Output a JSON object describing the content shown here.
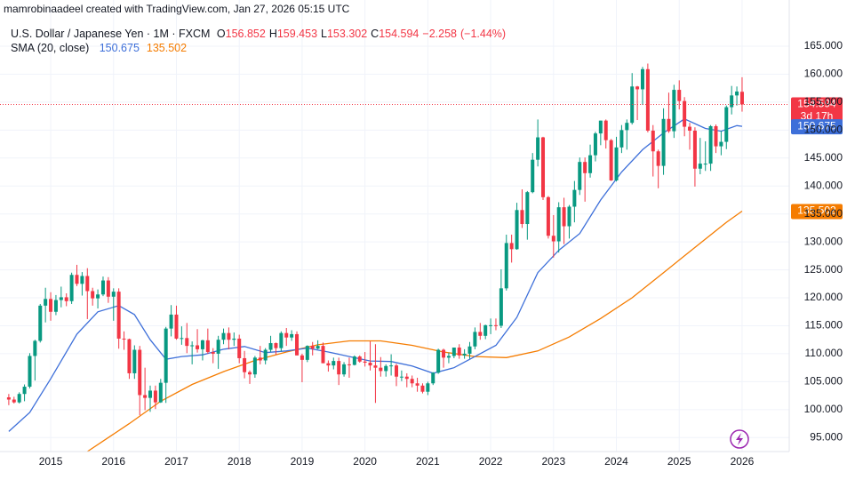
{
  "credit": "mamrobinaadeel created with TradingView.com, Jan 27, 2026 05:15 UTC",
  "chart_data": {
    "type": "candlestick",
    "title": "U.S. Dollar / Japanese Yen · 1M · FXCM",
    "ohlc_keys": [
      "O",
      "H",
      "L",
      "C"
    ],
    "change": {
      "value": -2.258,
      "label": "−2.258"
    },
    "change_pct": {
      "value": -1.44,
      "label": "(−1.44%)"
    },
    "countdown": "3d 17h",
    "up_color": "#089981",
    "down_color": "#f23645",
    "indicator_label": "SMA (20, close)",
    "x": [
      "2014-05",
      "2014-06",
      "2014-07",
      "2014-08",
      "2014-09",
      "2014-10",
      "2014-11",
      "2014-12",
      "2015-01",
      "2015-02",
      "2015-03",
      "2015-04",
      "2015-05",
      "2015-06",
      "2015-07",
      "2015-08",
      "2015-09",
      "2015-10",
      "2015-11",
      "2015-12",
      "2016-01",
      "2016-02",
      "2016-03",
      "2016-04",
      "2016-05",
      "2016-06",
      "2016-07",
      "2016-08",
      "2016-09",
      "2016-10",
      "2016-11",
      "2016-12",
      "2017-01",
      "2017-02",
      "2017-03",
      "2017-04",
      "2017-05",
      "2017-06",
      "2017-07",
      "2017-08",
      "2017-09",
      "2017-10",
      "2017-11",
      "2017-12",
      "2018-01",
      "2018-02",
      "2018-03",
      "2018-04",
      "2018-05",
      "2018-06",
      "2018-07",
      "2018-08",
      "2018-09",
      "2018-10",
      "2018-11",
      "2018-12",
      "2019-01",
      "2019-02",
      "2019-03",
      "2019-04",
      "2019-05",
      "2019-06",
      "2019-07",
      "2019-08",
      "2019-09",
      "2019-10",
      "2019-11",
      "2019-12",
      "2020-01",
      "2020-02",
      "2020-03",
      "2020-04",
      "2020-05",
      "2020-06",
      "2020-07",
      "2020-08",
      "2020-09",
      "2020-10",
      "2020-11",
      "2020-12",
      "2021-01",
      "2021-02",
      "2021-03",
      "2021-04",
      "2021-05",
      "2021-06",
      "2021-07",
      "2021-08",
      "2021-09",
      "2021-10",
      "2021-11",
      "2021-12",
      "2022-01",
      "2022-02",
      "2022-03",
      "2022-04",
      "2022-05",
      "2022-06",
      "2022-07",
      "2022-08",
      "2022-09",
      "2022-10",
      "2022-11",
      "2022-12",
      "2023-01",
      "2023-02",
      "2023-03",
      "2023-04",
      "2023-05",
      "2023-06",
      "2023-07",
      "2023-08",
      "2023-09",
      "2023-10",
      "2023-11",
      "2023-12",
      "2024-01",
      "2024-02",
      "2024-03",
      "2024-04",
      "2024-05",
      "2024-06",
      "2024-07",
      "2024-08",
      "2024-09",
      "2024-10",
      "2024-11",
      "2024-12",
      "2025-01",
      "2025-02",
      "2025-03",
      "2025-04",
      "2025-05",
      "2025-06",
      "2025-07",
      "2025-08",
      "2025-09",
      "2025-10",
      "2025-11",
      "2025-12",
      "2026-01"
    ],
    "candles": [
      [
        102.2,
        102.8,
        100.8,
        101.8
      ],
      [
        101.8,
        102.3,
        101.1,
        101.3
      ],
      [
        101.3,
        103.1,
        101.1,
        102.8
      ],
      [
        102.8,
        104.5,
        101.5,
        104.1
      ],
      [
        104.1,
        110.1,
        103.8,
        109.6
      ],
      [
        109.6,
        112.5,
        105.2,
        112.3
      ],
      [
        112.3,
        118.9,
        112.0,
        118.6
      ],
      [
        118.6,
        121.8,
        115.6,
        119.8
      ],
      [
        119.8,
        121.0,
        115.9,
        117.5
      ],
      [
        117.5,
        120.5,
        116.9,
        119.6
      ],
      [
        119.6,
        122.0,
        118.3,
        120.1
      ],
      [
        120.1,
        120.8,
        118.5,
        119.4
      ],
      [
        119.4,
        124.5,
        118.9,
        124.1
      ],
      [
        124.1,
        125.9,
        122.1,
        122.5
      ],
      [
        122.5,
        124.6,
        120.4,
        123.9
      ],
      [
        123.9,
        125.3,
        116.2,
        121.2
      ],
      [
        121.2,
        121.8,
        118.6,
        119.9
      ],
      [
        119.9,
        121.5,
        118.1,
        120.6
      ],
      [
        120.6,
        123.8,
        120.3,
        123.1
      ],
      [
        123.1,
        123.7,
        119.1,
        120.2
      ],
      [
        120.2,
        121.7,
        115.9,
        121.1
      ],
      [
        121.1,
        121.7,
        110.9,
        112.7
      ],
      [
        112.7,
        114.0,
        110.7,
        112.6
      ],
      [
        112.6,
        112.7,
        105.5,
        106.5
      ],
      [
        106.5,
        111.5,
        105.5,
        110.7
      ],
      [
        110.7,
        111.4,
        99.0,
        102.6
      ],
      [
        102.6,
        107.5,
        99.9,
        102.1
      ],
      [
        102.1,
        104.3,
        99.6,
        103.4
      ],
      [
        103.4,
        104.3,
        100.1,
        101.3
      ],
      [
        101.3,
        105.5,
        101.2,
        104.8
      ],
      [
        104.8,
        114.8,
        101.2,
        114.5
      ],
      [
        114.5,
        118.7,
        113.1,
        117.0
      ],
      [
        117.0,
        118.6,
        112.5,
        112.7
      ],
      [
        112.7,
        114.9,
        111.6,
        112.8
      ],
      [
        112.8,
        115.5,
        110.1,
        111.4
      ],
      [
        111.4,
        112.2,
        108.1,
        111.5
      ],
      [
        111.5,
        114.4,
        110.2,
        110.8
      ],
      [
        110.8,
        112.5,
        108.8,
        112.4
      ],
      [
        112.4,
        114.5,
        110.0,
        110.3
      ],
      [
        110.3,
        111.0,
        108.3,
        110.0
      ],
      [
        110.0,
        113.2,
        107.3,
        112.5
      ],
      [
        112.5,
        114.5,
        111.7,
        113.7
      ],
      [
        113.7,
        114.7,
        110.8,
        112.5
      ],
      [
        112.5,
        113.8,
        111.4,
        112.7
      ],
      [
        112.7,
        113.4,
        108.3,
        109.2
      ],
      [
        109.2,
        110.5,
        105.6,
        106.7
      ],
      [
        106.7,
        107.0,
        104.6,
        106.3
      ],
      [
        106.3,
        109.6,
        105.7,
        109.3
      ],
      [
        109.3,
        111.4,
        108.1,
        108.8
      ],
      [
        108.8,
        111.0,
        108.1,
        110.7
      ],
      [
        110.7,
        113.2,
        110.3,
        111.9
      ],
      [
        111.9,
        112.0,
        109.8,
        111.0
      ],
      [
        111.0,
        114.0,
        110.4,
        113.7
      ],
      [
        113.7,
        114.6,
        111.4,
        112.9
      ],
      [
        112.9,
        114.2,
        112.3,
        113.5
      ],
      [
        113.5,
        114.0,
        109.7,
        109.7
      ],
      [
        109.7,
        110.0,
        104.9,
        108.9
      ],
      [
        108.9,
        111.5,
        108.5,
        111.4
      ],
      [
        111.4,
        112.1,
        109.7,
        110.9
      ],
      [
        110.9,
        112.4,
        110.8,
        111.4
      ],
      [
        111.4,
        112.0,
        108.3,
        108.3
      ],
      [
        108.3,
        108.8,
        106.8,
        107.9
      ],
      [
        107.9,
        109.3,
        107.2,
        108.7
      ],
      [
        108.7,
        109.3,
        104.4,
        106.3
      ],
      [
        106.3,
        108.5,
        105.9,
        108.1
      ],
      [
        108.1,
        109.3,
        105.7,
        108.0
      ],
      [
        108.0,
        109.7,
        107.9,
        109.5
      ],
      [
        109.5,
        109.7,
        108.4,
        108.6
      ],
      [
        108.6,
        110.3,
        107.7,
        108.4
      ],
      [
        108.4,
        112.2,
        107.0,
        107.9
      ],
      [
        107.9,
        111.7,
        101.2,
        107.5
      ],
      [
        107.5,
        109.4,
        105.9,
        106.9
      ],
      [
        106.9,
        108.1,
        105.9,
        107.8
      ],
      [
        107.8,
        109.9,
        106.1,
        107.9
      ],
      [
        107.9,
        108.2,
        104.2,
        105.9
      ],
      [
        105.9,
        107.0,
        105.1,
        105.9
      ],
      [
        105.9,
        106.5,
        104.0,
        105.5
      ],
      [
        105.5,
        106.1,
        104.0,
        104.7
      ],
      [
        104.7,
        105.7,
        103.2,
        104.3
      ],
      [
        104.3,
        104.7,
        102.9,
        103.2
      ],
      [
        103.2,
        105.0,
        102.6,
        104.7
      ],
      [
        104.7,
        106.7,
        104.4,
        106.6
      ],
      [
        106.6,
        110.9,
        106.4,
        110.7
      ],
      [
        110.7,
        110.9,
        107.5,
        109.3
      ],
      [
        109.3,
        110.2,
        108.3,
        109.6
      ],
      [
        109.6,
        111.1,
        109.2,
        111.1
      ],
      [
        111.1,
        111.7,
        109.1,
        109.7
      ],
      [
        109.7,
        110.8,
        109.1,
        110.0
      ],
      [
        110.0,
        112.1,
        109.1,
        111.3
      ],
      [
        111.3,
        114.7,
        110.8,
        113.9
      ],
      [
        113.9,
        115.5,
        112.5,
        113.2
      ],
      [
        113.2,
        115.2,
        112.6,
        115.1
      ],
      [
        115.1,
        116.3,
        113.5,
        115.1
      ],
      [
        115.1,
        116.3,
        114.2,
        115.0
      ],
      [
        115.0,
        125.1,
        114.6,
        121.7
      ],
      [
        121.7,
        131.3,
        121.3,
        129.8
      ],
      [
        129.8,
        131.3,
        126.3,
        128.7
      ],
      [
        128.7,
        137.0,
        128.6,
        135.7
      ],
      [
        135.7,
        139.4,
        132.5,
        133.2
      ],
      [
        133.2,
        139.1,
        130.4,
        138.9
      ],
      [
        138.9,
        145.9,
        138.7,
        144.7
      ],
      [
        144.7,
        151.9,
        143.5,
        148.7
      ],
      [
        148.7,
        148.8,
        137.5,
        138.0
      ],
      [
        138.0,
        138.2,
        130.6,
        131.1
      ],
      [
        131.1,
        134.8,
        127.2,
        130.1
      ],
      [
        130.1,
        137.1,
        128.1,
        136.2
      ],
      [
        136.2,
        137.9,
        129.6,
        132.8
      ],
      [
        132.8,
        136.6,
        130.6,
        136.3
      ],
      [
        136.3,
        140.9,
        133.5,
        139.3
      ],
      [
        139.3,
        145.1,
        138.4,
        144.3
      ],
      [
        144.3,
        145.1,
        137.2,
        142.3
      ],
      [
        142.3,
        147.4,
        141.5,
        145.5
      ],
      [
        145.5,
        149.7,
        144.4,
        149.4
      ],
      [
        149.4,
        151.7,
        147.3,
        151.7
      ],
      [
        151.7,
        151.9,
        146.7,
        148.2
      ],
      [
        148.2,
        148.4,
        140.9,
        141.0
      ],
      [
        141.0,
        148.8,
        140.8,
        146.9
      ],
      [
        146.9,
        150.9,
        145.9,
        150.0
      ],
      [
        150.0,
        151.9,
        146.5,
        151.3
      ],
      [
        151.3,
        160.2,
        151.0,
        157.8
      ],
      [
        157.8,
        157.9,
        151.8,
        157.3
      ],
      [
        157.3,
        161.3,
        154.5,
        160.9
      ],
      [
        160.9,
        161.9,
        149.6,
        149.9
      ],
      [
        149.9,
        150.9,
        141.7,
        146.2
      ],
      [
        146.2,
        146.5,
        139.6,
        143.6
      ],
      [
        143.6,
        153.9,
        142.0,
        152.0
      ],
      [
        152.0,
        156.7,
        149.5,
        149.8
      ],
      [
        149.8,
        158.1,
        148.6,
        157.2
      ],
      [
        157.2,
        158.9,
        153.7,
        155.2
      ],
      [
        155.2,
        155.9,
        148.9,
        150.6
      ],
      [
        150.6,
        151.3,
        146.5,
        149.9
      ],
      [
        149.9,
        150.5,
        139.9,
        143.1
      ],
      [
        143.1,
        148.6,
        142.1,
        144.0
      ],
      [
        144.0,
        148.0,
        142.7,
        144.0
      ],
      [
        144.0,
        150.9,
        142.7,
        150.7
      ],
      [
        150.7,
        151.0,
        145.9,
        147.1
      ],
      [
        147.1,
        149.9,
        145.5,
        147.9
      ],
      [
        147.9,
        154.4,
        146.6,
        154.1
      ],
      [
        154.1,
        157.9,
        152.8,
        156.2
      ],
      [
        156.2,
        157.8,
        154.4,
        156.9
      ],
      [
        156.852,
        159.453,
        153.302,
        154.594
      ]
    ],
    "lines": [
      {
        "color": "#3d6fd9",
        "x": [
          "2014-05",
          "2014-09",
          "2015-01",
          "2015-06",
          "2015-10",
          "2016-02",
          "2016-05",
          "2016-08",
          "2016-11",
          "2017-02",
          "2017-06",
          "2017-10",
          "2018-02",
          "2018-06",
          "2018-10",
          "2019-02",
          "2019-06",
          "2019-10",
          "2020-02",
          "2020-06",
          "2020-10",
          "2021-02",
          "2021-06",
          "2021-10",
          "2022-02",
          "2022-06",
          "2022-10",
          "2023-02",
          "2023-06",
          "2023-10",
          "2024-02",
          "2024-06",
          "2024-10",
          "2025-02",
          "2025-06",
          "2025-09",
          "2025-12",
          "2026-01"
        ],
        "values": [
          96.1,
          99.5,
          105.5,
          113.5,
          117.5,
          118.6,
          117.0,
          112.5,
          109.0,
          109.5,
          109.8,
          110.8,
          111.3,
          110.2,
          110.5,
          111.0,
          110.3,
          109.5,
          108.7,
          108.6,
          107.8,
          106.5,
          107.5,
          109.5,
          111.5,
          116.5,
          124.5,
          128.5,
          131.5,
          137.5,
          142.5,
          146.5,
          149.5,
          152.0,
          150.3,
          149.8,
          150.8,
          150.675
        ]
      },
      {
        "color": "#f57c00",
        "x": [
          "2015-08",
          "2016-04",
          "2016-10",
          "2017-04",
          "2017-10",
          "2018-04",
          "2018-10",
          "2019-04",
          "2019-10",
          "2020-04",
          "2020-10",
          "2021-04",
          "2021-10",
          "2022-04",
          "2022-10",
          "2023-04",
          "2023-10",
          "2024-04",
          "2024-10",
          "2025-04",
          "2025-10",
          "2026-01"
        ],
        "values": [
          92.5,
          97.5,
          101.5,
          104.5,
          106.8,
          108.8,
          110.3,
          111.6,
          112.3,
          112.3,
          111.5,
          110.3,
          109.5,
          109.3,
          110.5,
          113.0,
          116.3,
          120.0,
          124.5,
          129.0,
          133.5,
          135.502
        ]
      }
    ],
    "xlim": [
      "2014-04",
      "2026-10"
    ],
    "ylim": [
      92.5,
      168.5
    ],
    "yticks": [
      {
        "value": 95,
        "label": "95.000"
      },
      {
        "value": 100,
        "label": "100.000"
      },
      {
        "value": 105,
        "label": "105.000"
      },
      {
        "value": 110,
        "label": "110.000"
      },
      {
        "value": 115,
        "label": "115.000"
      },
      {
        "value": 120,
        "label": "120.000"
      },
      {
        "value": 125,
        "label": "125.000"
      },
      {
        "value": 130,
        "label": "130.000"
      },
      {
        "value": 135,
        "label": "135.000"
      },
      {
        "value": 140,
        "label": "140.000"
      },
      {
        "value": 145,
        "label": "145.000"
      },
      {
        "value": 150,
        "label": "150.000"
      },
      {
        "value": 155,
        "label": "155.000"
      },
      {
        "value": 160,
        "label": "160.000"
      },
      {
        "value": 165,
        "label": "165.000"
      }
    ],
    "xticks": [
      {
        "value": "2015-01",
        "label": "2015"
      },
      {
        "value": "2016-01",
        "label": "2016"
      },
      {
        "value": "2017-01",
        "label": "2017"
      },
      {
        "value": "2018-01",
        "label": "2018"
      },
      {
        "value": "2019-01",
        "label": "2019"
      },
      {
        "value": "2020-01",
        "label": "2020"
      },
      {
        "value": "2021-01",
        "label": "2021"
      },
      {
        "value": "2022-01",
        "label": "2022"
      },
      {
        "value": "2023-01",
        "label": "2023"
      },
      {
        "value": "2024-01",
        "label": "2024"
      },
      {
        "value": "2025-01",
        "label": "2025"
      },
      {
        "value": "2026-01",
        "label": "2026"
      }
    ],
    "grid": true
  }
}
